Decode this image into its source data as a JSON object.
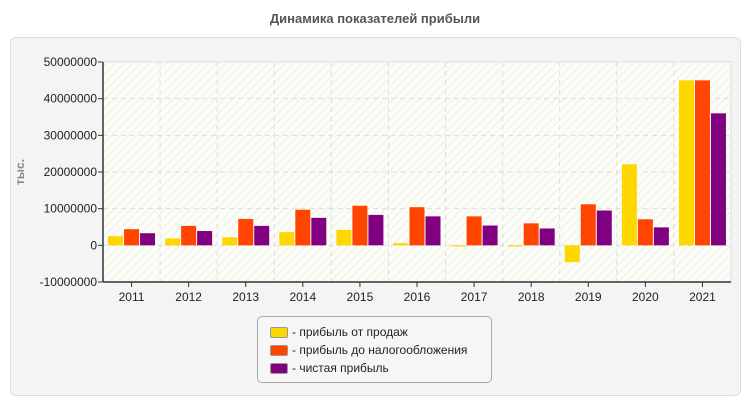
{
  "chart_data": {
    "type": "bar",
    "title": "Динамика показателей прибыли",
    "ylabel": "тыс.",
    "xlabel": "",
    "ylim": [
      -10000000,
      50000000
    ],
    "yticks": [
      "50000000",
      "40000000",
      "30000000",
      "20000000",
      "10000000",
      "0",
      "-10000000"
    ],
    "categories": [
      "2011",
      "2012",
      "2013",
      "2014",
      "2015",
      "2016",
      "2017",
      "2018",
      "2019",
      "2020",
      "2021"
    ],
    "grid": true,
    "legend_position": "bottom",
    "series": [
      {
        "name": "- прибыль от продаж",
        "color": "#FFD700",
        "values": [
          2500000,
          1900000,
          2200000,
          3600000,
          4200000,
          600000,
          -300000,
          -300000,
          -4600000,
          22100000,
          45000000
        ]
      },
      {
        "name": "- прибыль до налогообложения",
        "color": "#FF4500",
        "values": [
          4400000,
          5300000,
          7200000,
          9700000,
          10800000,
          10400000,
          7900000,
          6000000,
          11200000,
          7100000,
          45000000
        ]
      },
      {
        "name": "- чистая прибыль",
        "color": "#800080",
        "values": [
          3300000,
          3900000,
          5300000,
          7500000,
          8300000,
          7900000,
          5400000,
          4600000,
          9500000,
          4900000,
          36000000
        ]
      }
    ]
  }
}
